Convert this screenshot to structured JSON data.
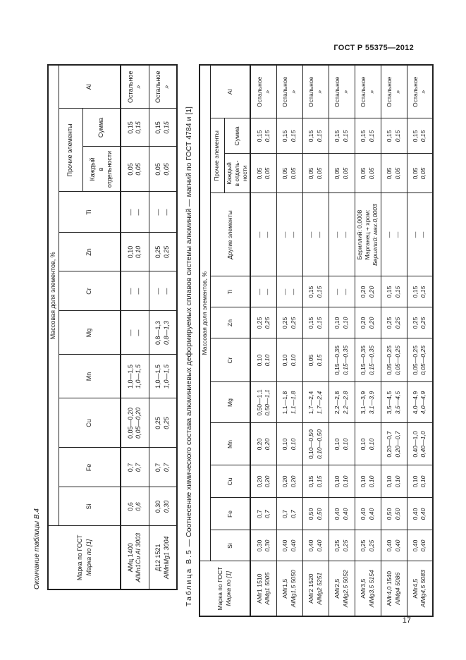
{
  "page": {
    "doc_header": "ГОСТ Р 55375—2012",
    "page_number": "17"
  },
  "table_b4": {
    "caption": "Окончание таблицы В.4",
    "header": {
      "marka_line1": "Марка по ГОСТ",
      "marka_line2": "Марка по [1]",
      "group": "Массовая доля элементов, %",
      "elements": [
        "Si",
        "Fe",
        "Cu",
        "Mn",
        "Mg",
        "Cr",
        "Zn",
        "Ti"
      ],
      "other_group": "Прочие элементы",
      "other_each": "Каждый\nв отдельности",
      "other_sum": "Сумма",
      "al": "Al"
    },
    "rows": [
      {
        "cells": [
          {
            "g": "АМц 1400",
            "i": "AlMn1Cu Al 3003"
          },
          {
            "g": "0,6",
            "i": "0,6"
          },
          {
            "g": "0,7",
            "i": "0,7"
          },
          {
            "g": "0,05—0,20",
            "i": "0,05—0,20"
          },
          {
            "g": "1,0—1,5",
            "i": "1,0—1,5"
          },
          {
            "g": "—",
            "i": "—"
          },
          {
            "g": "—",
            "i": "—"
          },
          {
            "g": "0,10",
            "i": "0,10"
          },
          {
            "g": "—",
            "i": "—"
          },
          {
            "g": "0,05",
            "i": "0,05"
          },
          {
            "g": "0,15",
            "i": "0,15"
          },
          {
            "g": "Остальное",
            "i": "»"
          }
        ]
      },
      {
        "cells": [
          {
            "g": "Д12 1521",
            "i": "AlMnMg1 3004"
          },
          {
            "g": "0,30",
            "i": "0,30"
          },
          {
            "g": "0,7",
            "i": "0,7"
          },
          {
            "g": "0,25",
            "i": "0,25"
          },
          {
            "g": "1,0—1,5",
            "i": "1,0—1,5"
          },
          {
            "g": "0,8—1,3",
            "i": "0,8—1,3"
          },
          {
            "g": "—",
            "i": "—"
          },
          {
            "g": "0,25",
            "i": "0,25"
          },
          {
            "g": "—",
            "i": "—"
          },
          {
            "g": "0,05",
            "i": "0,05"
          },
          {
            "g": "0,15",
            "i": "0,15"
          },
          {
            "g": "Остальное",
            "i": "»"
          }
        ]
      }
    ]
  },
  "table_b5": {
    "caption_label": "Таблица В.5",
    "caption_rest": " — Соотнесение химического состава алюминиевых деформируемых сплавов системы алюминий — магний по ГОСТ 4784 и [1]",
    "header": {
      "marka_line1": "Марка по ГОСТ",
      "marka_line2": "Марка по [1]",
      "group": "Массовая доля элементов, %",
      "elements": [
        "Si",
        "Fe",
        "Cu",
        "Mn",
        "Mg",
        "Cr",
        "Zn",
        "Ti"
      ],
      "other_elements": "Другие элементы",
      "other_group": "Прочие элементы",
      "other_each": "Каждый\nв отдель-\nности",
      "other_sum": "Сумма",
      "al": "Al"
    },
    "rows": [
      {
        "cells": [
          {
            "g": "АМг1 1510",
            "i": "AlMg1 5005"
          },
          {
            "g": "0,30",
            "i": "0,30"
          },
          {
            "g": "0,7",
            "i": "0,7"
          },
          {
            "g": "0,20",
            "i": "0,20"
          },
          {
            "g": "0,20",
            "i": "0,20"
          },
          {
            "g": "0,50—1,1",
            "i": "0,50—1,1"
          },
          {
            "g": "0,10",
            "i": "0,10"
          },
          {
            "g": "0,25",
            "i": "0,25"
          },
          {
            "g": "—",
            "i": "—"
          },
          {
            "g": "—",
            "i": "—"
          },
          {
            "g": "0,05",
            "i": "0,05"
          },
          {
            "g": "0,15",
            "i": "0,15"
          },
          {
            "g": "Остальное",
            "i": "»"
          }
        ]
      },
      {
        "cells": [
          {
            "g": "АМг1,5",
            "i": "AlMg1,5 5050"
          },
          {
            "g": "0,40",
            "i": "0,40"
          },
          {
            "g": "0,7",
            "i": "0,7"
          },
          {
            "g": "0,20",
            "i": "0,20"
          },
          {
            "g": "0,10",
            "i": "0,10"
          },
          {
            "g": "1,1—1,8",
            "i": "1,1—1,8"
          },
          {
            "g": "0,10",
            "i": "0,10"
          },
          {
            "g": "0,25",
            "i": "0,25"
          },
          {
            "g": "—",
            "i": "—"
          },
          {
            "g": "—",
            "i": "—"
          },
          {
            "g": "0,05",
            "i": "0,05"
          },
          {
            "g": "0,15",
            "i": "0,15"
          },
          {
            "g": "Остальное",
            "i": "»"
          }
        ]
      },
      {
        "cells": [
          {
            "g": "АМг2 1520",
            "i": "AlMg2 5251"
          },
          {
            "g": "0,40",
            "i": "0,40"
          },
          {
            "g": "0,50",
            "i": "0,50"
          },
          {
            "g": "0,15",
            "i": "0,15"
          },
          {
            "g": "0,10—0,50",
            "i": "0,10—0,50"
          },
          {
            "g": "1,7—2,4",
            "i": "1,7—2,4"
          },
          {
            "g": "0,05",
            "i": "0,15"
          },
          {
            "g": "0,15",
            "i": "0,15"
          },
          {
            "g": "0,15",
            "i": "0,15"
          },
          {
            "g": "—",
            "i": "—"
          },
          {
            "g": "0,05",
            "i": "0,05"
          },
          {
            "g": "0,15",
            "i": "0,15"
          },
          {
            "g": "Остальное",
            "i": "»"
          }
        ]
      },
      {
        "cells": [
          {
            "g": "АМг2,5",
            "i": "AlMg2,5 5052"
          },
          {
            "g": "0,25",
            "i": "0,25"
          },
          {
            "g": "0,40",
            "i": "0,40"
          },
          {
            "g": "0,10",
            "i": "0,10"
          },
          {
            "g": "0,10",
            "i": "0,10"
          },
          {
            "g": "2,2—2,8",
            "i": "2,2—2,8"
          },
          {
            "g": "0,15—0,35",
            "i": "0,15—0,35"
          },
          {
            "g": "0,10",
            "i": "0,10"
          },
          {
            "g": "—",
            "i": "—"
          },
          {
            "g": "—",
            "i": "—"
          },
          {
            "g": "0,05",
            "i": "0,05"
          },
          {
            "g": "0,15",
            "i": "0,15"
          },
          {
            "g": "Остальное",
            "i": "»"
          }
        ]
      },
      {
        "cells": [
          {
            "g": "АМг3,5",
            "i": "AlMg3,5 5154"
          },
          {
            "g": "0,25",
            "i": "0,25"
          },
          {
            "g": "0,40",
            "i": "0,40"
          },
          {
            "g": "0,10",
            "i": "0,10"
          },
          {
            "g": "0,10",
            "i": "0,10"
          },
          {
            "g": "3,1—3,9",
            "i": "3,1—3,9"
          },
          {
            "g": "0,15—0,35",
            "i": "0,15—0,35"
          },
          {
            "g": "0,20",
            "i": "0,20"
          },
          {
            "g": "0,20",
            "i": "0,20"
          },
          {
            "g": "Бериллий: 0,0008\nМарганец + хром:",
            "i": "Бериллий: мах.0,0003"
          },
          {
            "g": "0,05",
            "i": "0,05"
          },
          {
            "g": "0,15",
            "i": "0,15"
          },
          {
            "g": "Остальное",
            "i": "»"
          }
        ]
      },
      {
        "cells": [
          {
            "g": "АМг4,0 1540",
            "i": "AlMg4 5086"
          },
          {
            "g": "0,40",
            "i": "0,40"
          },
          {
            "g": "0,50",
            "i": "0,50"
          },
          {
            "g": "0,10",
            "i": "0,10"
          },
          {
            "g": "0,20—0,7",
            "i": "0,20—0,7"
          },
          {
            "g": "3,5—4,5",
            "i": "3,5—4,5"
          },
          {
            "g": "0,05—0,25",
            "i": "0,05—0,25"
          },
          {
            "g": "0,25",
            "i": "0,25"
          },
          {
            "g": "0,15",
            "i": "0,15"
          },
          {
            "g": "—",
            "i": "—"
          },
          {
            "g": "0,05",
            "i": "0,05"
          },
          {
            "g": "0,15",
            "i": "0,15"
          },
          {
            "g": "Остальное",
            "i": "»"
          }
        ]
      },
      {
        "cells": [
          {
            "g": "АМг4,5",
            "i": "AlMg4,5 5083"
          },
          {
            "g": "0,40",
            "i": "0,40"
          },
          {
            "g": "0,40",
            "i": "0,40"
          },
          {
            "g": "0,10",
            "i": "0,10"
          },
          {
            "g": "0,40—1,0",
            "i": "0,40—1,0"
          },
          {
            "g": "4,0—4,9",
            "i": "4,0—4,9"
          },
          {
            "g": "0,05—0,25",
            "i": "0,05—0,25"
          },
          {
            "g": "0,25",
            "i": "0,25"
          },
          {
            "g": "0,15",
            "i": "0,15"
          },
          {
            "g": "—",
            "i": "—"
          },
          {
            "g": "0,05",
            "i": "0,05"
          },
          {
            "g": "0,15",
            "i": "0,15"
          },
          {
            "g": "Остальное",
            "i": "»"
          }
        ]
      }
    ]
  }
}
